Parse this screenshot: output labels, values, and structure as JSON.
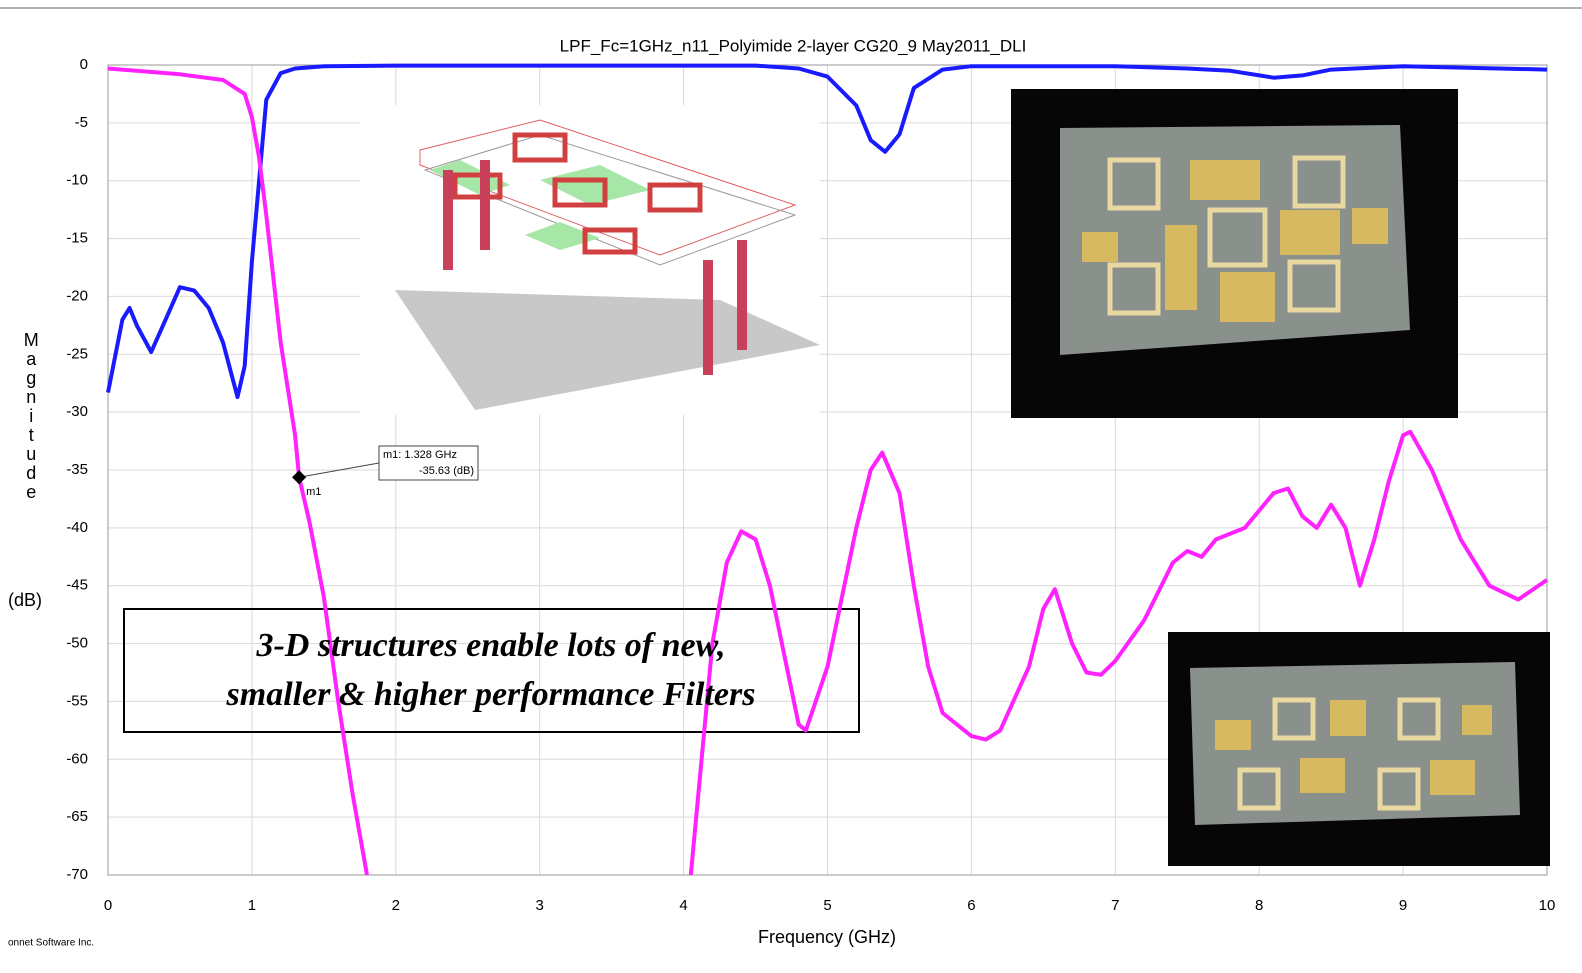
{
  "chart_data": {
    "type": "line",
    "title": "LPF_Fc=1GHz_n11_Polyimide 2-layer CG20_9 May2011_DLI",
    "xlabel": "Frequency (GHz)",
    "ylabel": "Magnitude",
    "ylabel_unit": "(dB)",
    "footer": "onnet Software Inc.",
    "xlim": [
      0,
      10
    ],
    "ylim": [
      -70,
      0
    ],
    "xticks": [
      0,
      1,
      2,
      3,
      4,
      5,
      6,
      7,
      8,
      9,
      10
    ],
    "yticks": [
      0,
      -5,
      -10,
      -15,
      -20,
      -25,
      -30,
      -35,
      -40,
      -45,
      -50,
      -55,
      -60,
      -65,
      -70
    ],
    "grid": true,
    "series": [
      {
        "color": "#1a1aff",
        "x": [
          0,
          0.1,
          0.15,
          0.2,
          0.3,
          0.4,
          0.5,
          0.6,
          0.7,
          0.8,
          0.9,
          0.95,
          1.0,
          1.05,
          1.1,
          1.2,
          1.3,
          1.5,
          2,
          3,
          4,
          4.5,
          4.8,
          5.0,
          5.2,
          5.3,
          5.4,
          5.5,
          5.6,
          5.8,
          6,
          7,
          7.5,
          7.8,
          8.0,
          8.1,
          8.3,
          8.5,
          9,
          10
        ],
        "values": [
          -28.3,
          -22,
          -21,
          -22.5,
          -24.8,
          -22,
          -19.2,
          -19.5,
          -21,
          -24,
          -28.7,
          -26,
          -17,
          -10,
          -3,
          -0.7,
          -0.3,
          -0.1,
          -0.05,
          -0.05,
          -0.05,
          -0.05,
          -0.3,
          -1,
          -3.5,
          -6.5,
          -7.5,
          -6,
          -2,
          -0.4,
          -0.1,
          -0.1,
          -0.3,
          -0.5,
          -0.9,
          -1.1,
          -0.9,
          -0.4,
          -0.1,
          -0.4
        ]
      },
      {
        "color": "#ff22ff",
        "x": [
          0,
          0.5,
          0.8,
          0.95,
          1.0,
          1.05,
          1.1,
          1.2,
          1.3,
          1.328,
          1.4,
          1.5,
          1.6,
          1.7,
          1.8,
          3,
          4.05,
          4.2,
          4.3,
          4.4,
          4.5,
          4.6,
          4.7,
          4.8,
          4.85,
          5.0,
          5.2,
          5.3,
          5.38,
          5.5,
          5.6,
          5.7,
          5.8,
          6.0,
          6.1,
          6.2,
          6.4,
          6.5,
          6.58,
          6.7,
          6.8,
          6.9,
          7.0,
          7.2,
          7.4,
          7.5,
          7.6,
          7.7,
          7.9,
          8.1,
          8.2,
          8.3,
          8.4,
          8.5,
          8.6,
          8.7,
          8.8,
          8.9,
          9.0,
          9.05,
          9.2,
          9.4,
          9.6,
          9.8,
          10.0
        ],
        "values": [
          -0.3,
          -0.8,
          -1.3,
          -2.5,
          -4.5,
          -8,
          -13,
          -24,
          -32,
          -35.63,
          -39.5,
          -46,
          -55,
          -63,
          -70,
          null,
          -70,
          -50,
          -43,
          -40.3,
          -41,
          -45,
          -51,
          -57,
          -57.5,
          -52,
          -40,
          -35,
          -33.5,
          -37,
          -45,
          -52,
          -56,
          -58,
          -58.3,
          -57.5,
          -52,
          -47,
          -45.3,
          -50,
          -52.5,
          -52.7,
          -51.5,
          -48,
          -43,
          -42,
          -42.5,
          -41,
          -40,
          -37,
          -36.6,
          -39,
          -40,
          -38,
          -40,
          -45,
          -41,
          -36,
          -32,
          -31.7,
          -35,
          -41,
          -45,
          -46.2,
          -44.5
        ]
      }
    ],
    "marker": {
      "name": "m1",
      "x": 1.328,
      "y": -35.63,
      "box_lines": [
        "m1: 1.328 GHz",
        "-35.63  (dB)"
      ]
    },
    "callout": [
      "3-D structures enable lots of new,",
      "smaller & higher performance Filters"
    ]
  }
}
